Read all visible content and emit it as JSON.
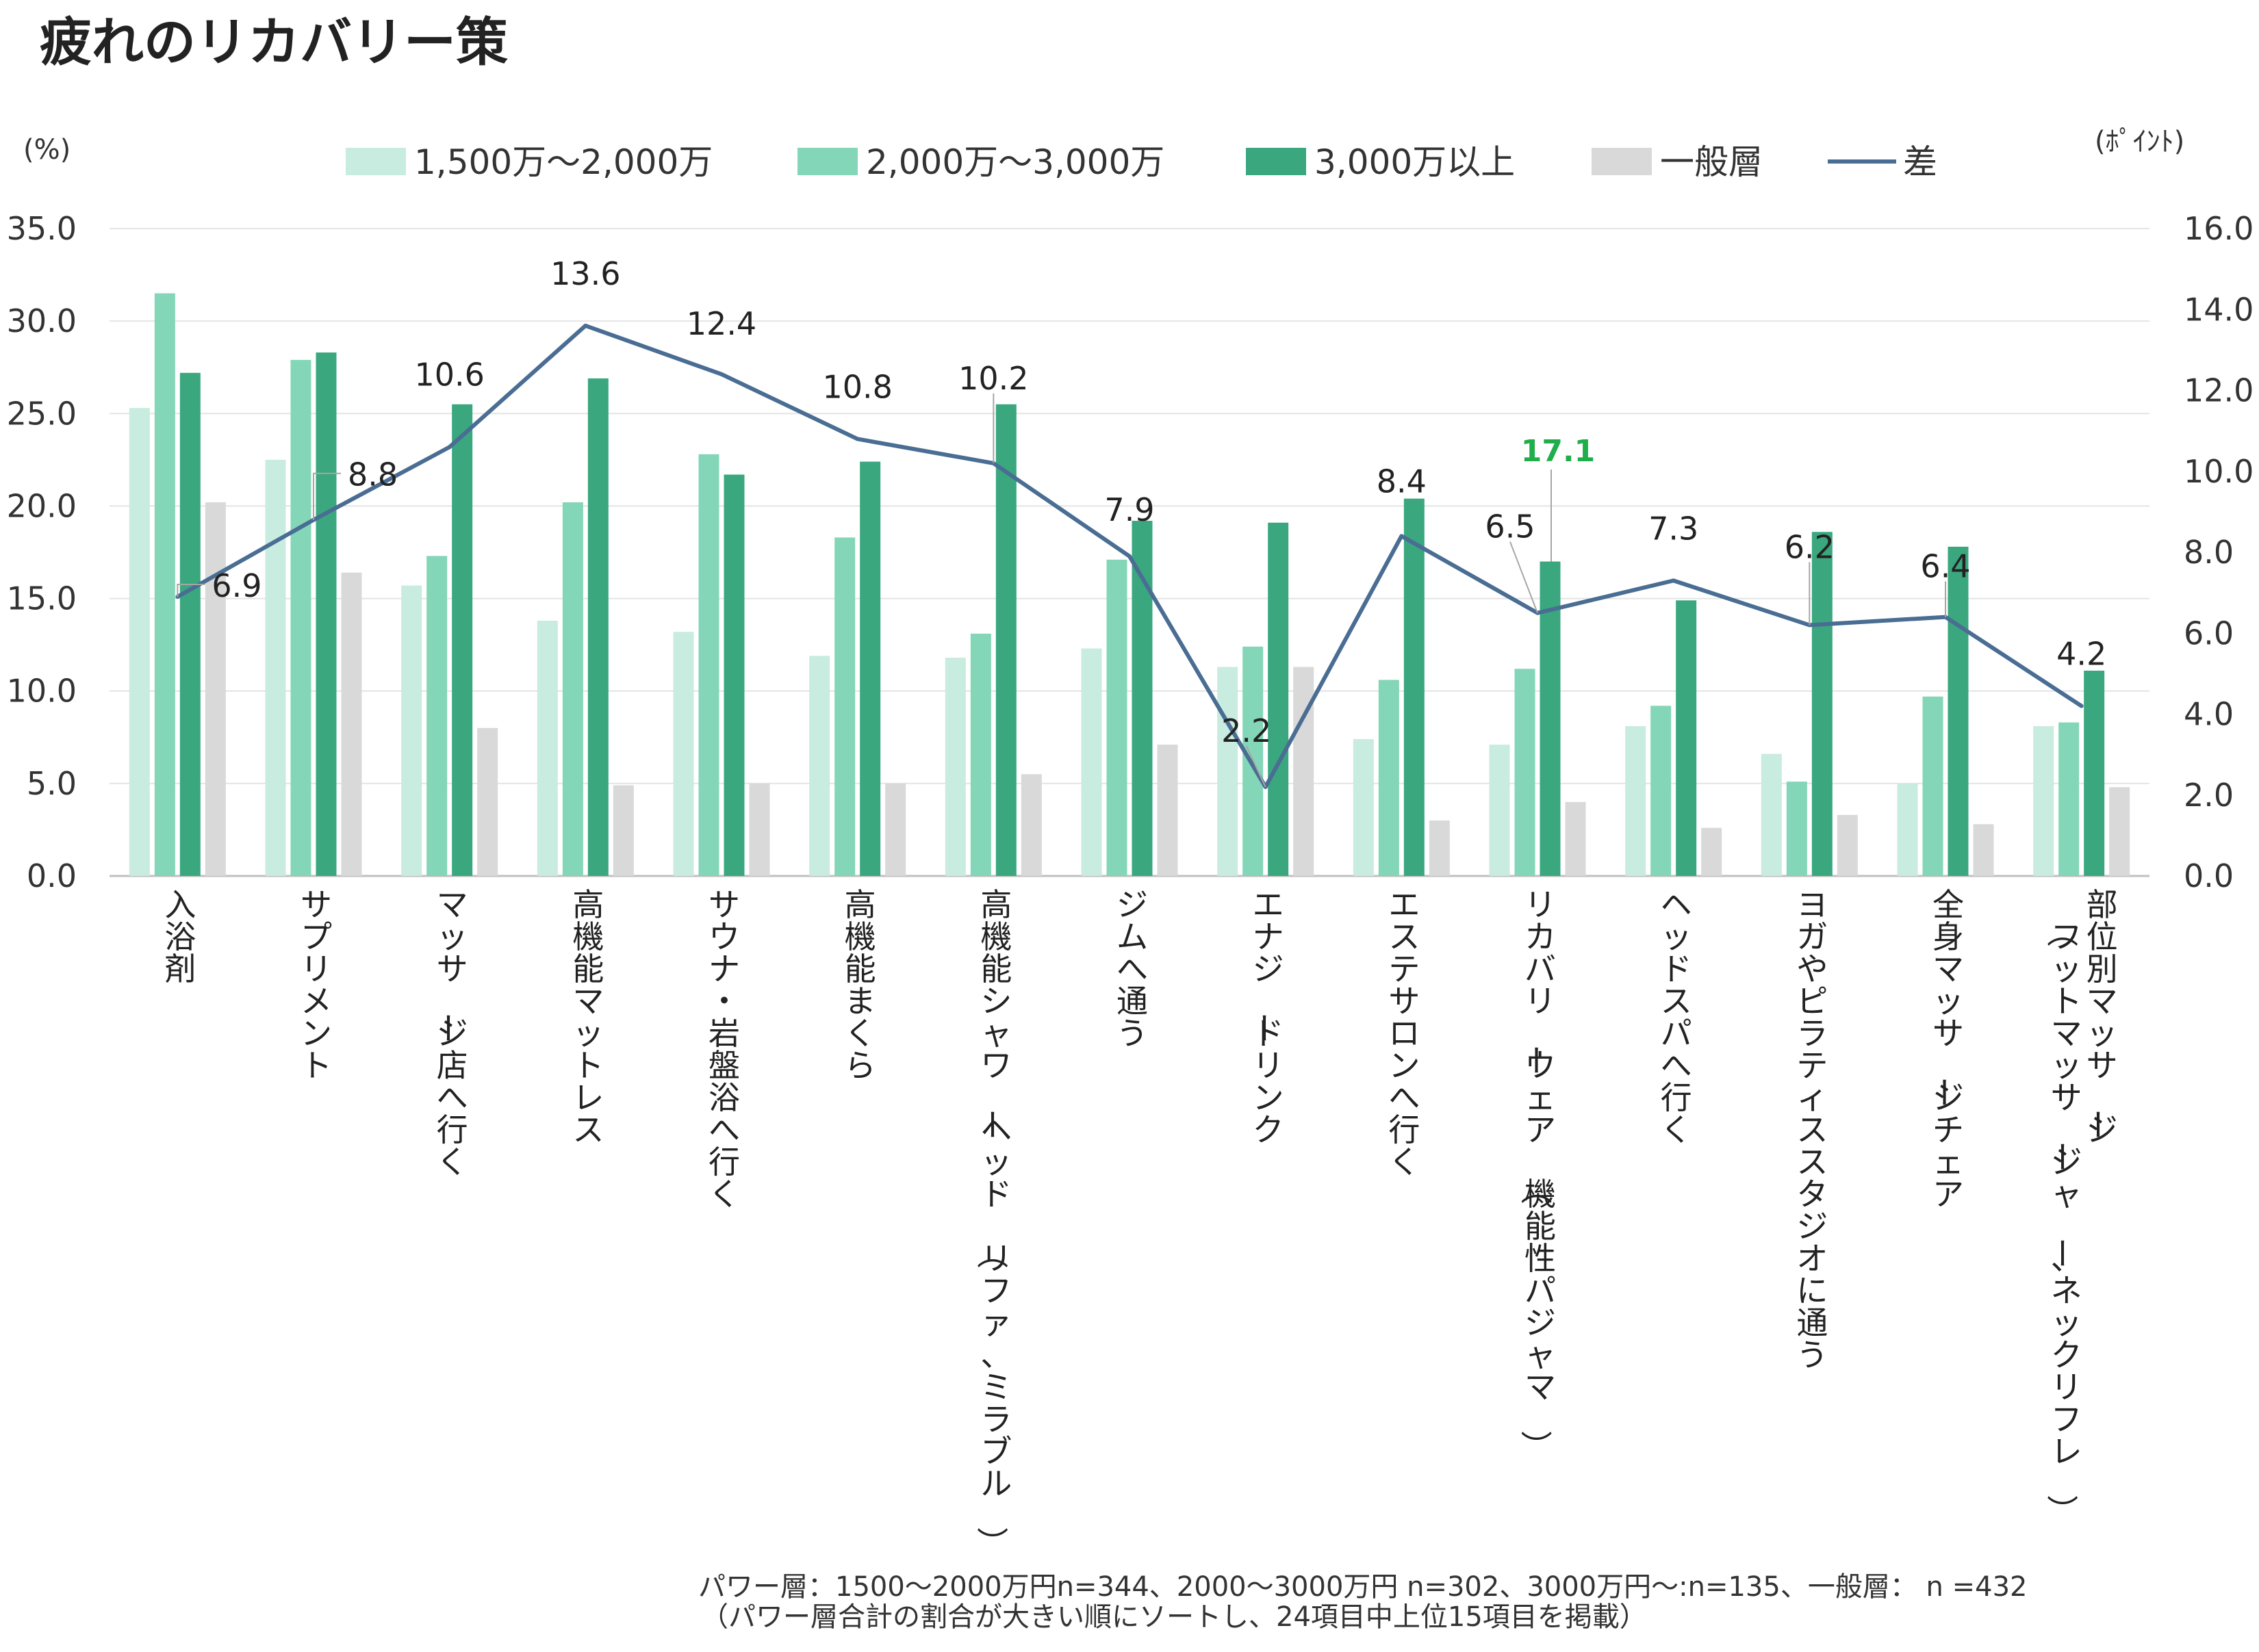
{
  "chart_data": {
    "type": "bar",
    "title": "疲れのリカバリー策",
    "left_unit": "(%)",
    "right_unit": "(ﾎﾟｲﾝﾄ)",
    "ylim": [
      0,
      35
    ],
    "y2lim": [
      0,
      16
    ],
    "y_ticks": [
      "0.0",
      "5.0",
      "10.0",
      "15.0",
      "20.0",
      "25.0",
      "30.0",
      "35.0"
    ],
    "y2_ticks": [
      "0.0",
      "2.0",
      "4.0",
      "6.0",
      "8.0",
      "10.0",
      "12.0",
      "14.0",
      "16.0"
    ],
    "grid": true,
    "legend_position": "top",
    "categories": [
      "入浴剤",
      "サプリメント",
      "マッサージ店へ行く",
      "高機能マットレス",
      "サウナ・岩盤浴へ行く",
      "高機能まくら",
      "高機能シャワーヘッド（リファ、ミラブル）",
      "ジムへ通う",
      "エナジードリンク",
      "エステサロンへ行く",
      "リカバリーウェア（機能性パジャマ）",
      "ヘッドスパへ行く",
      "ヨガやピラティススタジオに通う",
      "全身マッサージチェア",
      "部位別マッサージ（フットマッサージャー、ネックリフレ）"
    ],
    "series": [
      {
        "name": "1,500万～2,000万",
        "color": "#c8ecdf",
        "values": [
          25.3,
          22.5,
          15.7,
          13.8,
          13.2,
          11.9,
          11.8,
          12.3,
          11.3,
          7.4,
          7.1,
          8.1,
          6.6,
          5.0,
          8.1
        ]
      },
      {
        "name": "2,000万～3,000万",
        "color": "#83d6b7",
        "values": [
          31.5,
          27.9,
          17.3,
          20.2,
          22.8,
          18.3,
          13.1,
          17.1,
          12.4,
          10.6,
          11.2,
          9.2,
          5.1,
          9.7,
          8.3
        ]
      },
      {
        "name": "3,000万以上",
        "color": "#3aa77f",
        "values": [
          27.2,
          28.3,
          25.5,
          26.9,
          21.7,
          22.4,
          25.5,
          19.2,
          19.1,
          20.4,
          17.0,
          14.9,
          18.6,
          17.8,
          11.1
        ]
      },
      {
        "name": "一般層",
        "color": "#d9d9d9",
        "values": [
          20.2,
          16.4,
          8.0,
          4.9,
          5.0,
          5.0,
          5.5,
          7.1,
          11.3,
          3.0,
          4.0,
          2.6,
          3.3,
          2.8,
          4.8
        ]
      }
    ],
    "line_series": {
      "name": "差",
      "color": "#4a6d93",
      "axis": "right",
      "values": [
        6.9,
        8.8,
        10.6,
        13.6,
        12.4,
        10.8,
        10.2,
        7.9,
        2.2,
        8.4,
        6.5,
        7.3,
        6.2,
        6.4,
        4.2
      ],
      "labels": [
        "6.9",
        "8.8",
        "10.6",
        "13.6",
        "12.4",
        "10.8",
        "10.2",
        "7.9",
        "2.2",
        "8.4",
        "6.5",
        "7.3",
        "6.2",
        "6.4",
        "4.2"
      ]
    },
    "annotations": [
      {
        "text": "17.1",
        "category_index": 10,
        "color": "#1fae4a"
      }
    ]
  },
  "footnote": {
    "line1": "パワー層：1500～2000万円n=344、2000～3000万円 n=302、3000万円～:n=135、一般層： n =432",
    "line2": "（パワー層合計の割合が大きい順にソートし、24項目中上位15項目を掲載）"
  }
}
